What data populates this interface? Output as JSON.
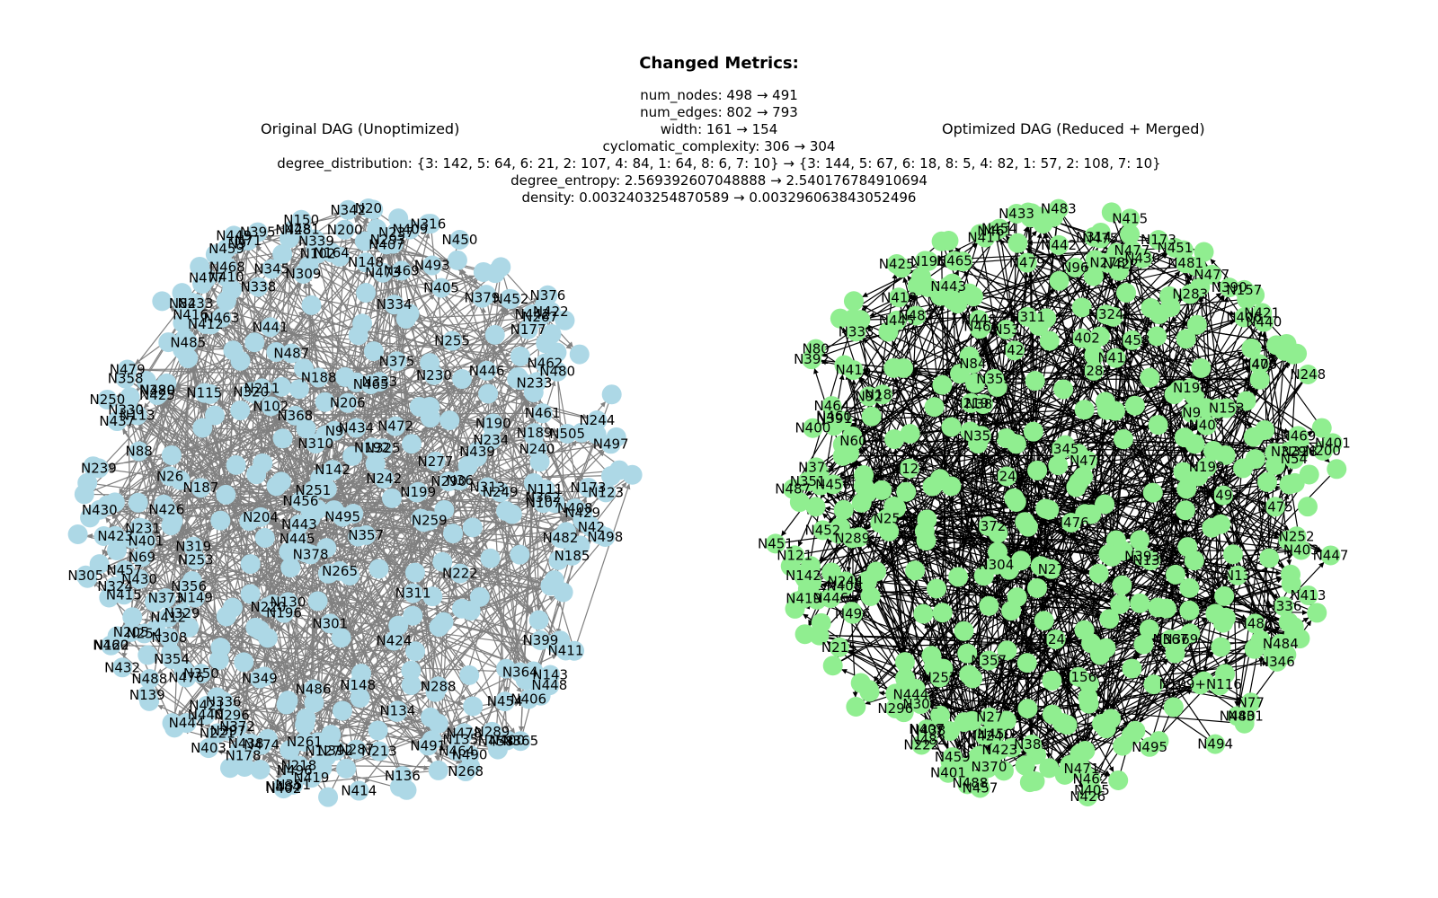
{
  "header": {
    "title": "Changed Metrics:",
    "lines": [
      "num_nodes: 498 → 491",
      "num_edges: 802 → 793",
      "width: 161 → 154",
      "cyclomatic_complexity: 306 → 304",
      "degree_distribution: {3: 142, 5: 64, 6: 21, 2: 107, 4: 84, 1: 64, 8: 6, 7: 10} → {3: 144, 5: 67, 6: 18, 8: 5, 4: 82, 1: 57, 2: 108, 7: 10}",
      "degree_entropy: 2.569392607048888 → 2.540176784910694",
      "density: 0.0032403254870589 → 0.003296063843052496"
    ]
  },
  "panels": {
    "left": {
      "title": "Original DAG (Unoptimized)",
      "node_color": "#add8e6",
      "edge_color": "#808080",
      "labels": [
        "N498",
        "N412",
        "N430",
        "N409",
        "N497",
        "N305",
        "N432",
        "N410",
        "N496",
        "N400",
        "N474",
        "N484",
        "N42",
        "N438",
        "N468",
        "N458",
        "N457",
        "N428",
        "N415",
        "N459",
        "N488",
        "N454",
        "N444",
        "N478",
        "N442",
        "N414",
        "N450",
        "N395",
        "N416",
        "N469",
        "N485",
        "N420",
        "N419",
        "N476",
        "N422",
        "N481",
        "N379",
        "N462",
        "N449",
        "N408",
        "N440",
        "N480",
        "N403",
        "N464",
        "N460",
        "N407",
        "N423",
        "N421",
        "N448",
        "N430",
        "N406",
        "N433",
        "N358",
        "N364",
        "N380",
        "N376",
        "N411",
        "N429",
        "N473",
        "N372",
        "N338",
        "N399",
        "N354",
        "N293",
        "N178",
        "N200",
        "N173",
        "N139",
        "N254",
        "N136",
        "N164",
        "N122",
        "N365",
        "N102",
        "N71",
        "N239",
        "N342",
        "N69",
        "N9",
        "N143",
        "N267",
        "N148",
        "N135",
        "N397",
        "N345",
        "N336",
        "N339",
        "N350",
        "N268",
        "N351",
        "N493",
        "N289",
        "N277",
        "N311",
        "N329",
        "N261",
        "N221",
        "N356",
        "N378",
        "N319",
        "N196",
        "N237",
        "N288",
        "N296",
        "N490",
        "N434",
        "N472",
        "N401",
        "N491",
        "N324",
        "N412",
        "N405",
        "N439",
        "N445",
        "N479",
        "N402",
        "N443",
        "N308",
        "N218",
        "N134",
        "N244",
        "N461",
        "N446",
        "N426",
        "N452",
        "N463",
        "N231",
        "N477",
        "N482",
        "N456",
        "N487",
        "N441",
        "N495",
        "N465",
        "N437",
        "N310",
        "N333",
        "N325",
        "N505",
        "N287",
        "N220",
        "N334",
        "N357",
        "N199",
        "N240",
        "N233",
        "N290",
        "N127",
        "N107",
        "N242",
        "N115",
        "N205",
        "N188",
        "N177",
        "N102",
        "N148",
        "N187",
        "N130",
        "N150",
        "N142",
        "N190",
        "N375",
        "N192",
        "N189",
        "N251",
        "N213",
        "N320",
        "N362",
        "N250",
        "N204",
        "N425",
        "N424",
        "N373",
        "N486",
        "N316",
        "N392",
        "N234",
        "N265",
        "N82",
        "N20",
        "N88",
        "N309",
        "N149",
        "N113",
        "N259",
        "N36",
        "N26",
        "N185",
        "N330",
        "N123",
        "N206",
        "N222",
        "N230",
        "N253",
        "N249",
        "N313",
        "N255",
        "N9",
        "N349",
        "N111",
        "N211",
        "N368",
        "N301"
      ]
    },
    "right": {
      "title": "Optimized DAG (Reduced + Merged)",
      "node_color": "#90ee90",
      "edge_color": "#000000",
      "labels": [
        "N456",
        "N416",
        "N454",
        "N452",
        "N459",
        "N215",
        "N413",
        "N482",
        "N477",
        "N415",
        "N447",
        "N433",
        "N109+N116",
        "N302",
        "N328",
        "N480",
        "N484",
        "N421",
        "N471",
        "N451",
        "N405",
        "N479",
        "N487",
        "N481",
        "N373",
        "N444",
        "N423",
        "N446",
        "N475",
        "N483",
        "N419",
        "N494",
        "N431",
        "N495",
        "N401",
        "N464",
        "N411",
        "N407",
        "N426",
        "N400",
        "N329",
        "N477",
        "N496",
        "N465",
        "N451",
        "N408",
        "N469",
        "N440",
        "N486",
        "N438",
        "N403",
        "N460",
        "N461",
        "N462",
        "N333",
        "N422",
        "N401",
        "N424",
        "N391",
        "N351",
        "N445",
        "N457",
        "N418",
        "N408",
        "N478",
        "N353",
        "N427",
        "N425",
        "N491",
        "N402",
        "N488",
        "N412",
        "N470",
        "N406",
        "N476",
        "N443",
        "N448",
        "N450",
        "N430",
        "N485",
        "N442",
        "N458",
        "N468",
        "N475",
        "N407",
        "N53",
        "N244",
        "N289",
        "N345",
        "N257",
        "N324",
        "N219",
        "N156",
        "N198",
        "N123",
        "N77",
        "N84",
        "N240",
        "N200",
        "N196",
        "N139",
        "N153",
        "N185",
        "N248",
        "N282",
        "N311",
        "N336",
        "N369",
        "N370",
        "N390",
        "N350",
        "N60",
        "N25",
        "N9",
        "N80",
        "N96",
        "N27",
        "N392",
        "N372",
        "N314",
        "N357",
        "N199",
        "N252",
        "N157",
        "N222",
        "N92",
        "N13",
        "N296",
        "N142",
        "N244",
        "N367",
        "N346",
        "N393",
        "N278",
        "N283",
        "N173",
        "N54",
        "N121",
        "N27",
        "N383",
        "N381",
        "N304"
      ]
    }
  }
}
